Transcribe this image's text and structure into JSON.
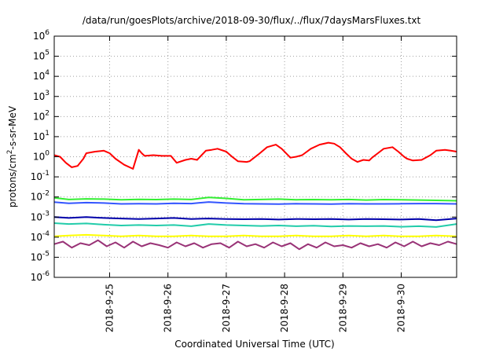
{
  "chart_data": {
    "type": "line",
    "title": "/data/run/goesPlots/archive/2018-09-30/flux/../flux/7daysMarsFluxes.txt",
    "xlabel": "Coordinated Universal Time (UTC)",
    "ylabel": {
      "base": "protons/cm",
      "sup": "2",
      "rest": "-s-sr-MeV"
    },
    "yscale": "log",
    "ylim": [
      1e-06,
      1000000.0
    ],
    "xlim": [
      24.05,
      30.95
    ],
    "grid": true,
    "y_ticks": [
      {
        "value": 1e-06,
        "base": "10",
        "exp": "-6"
      },
      {
        "value": 1e-05,
        "base": "10",
        "exp": "-5"
      },
      {
        "value": 0.0001,
        "base": "10",
        "exp": "-4"
      },
      {
        "value": 0.001,
        "base": "10",
        "exp": "-3"
      },
      {
        "value": 0.01,
        "base": "10",
        "exp": "-2"
      },
      {
        "value": 0.1,
        "base": "10",
        "exp": "-1"
      },
      {
        "value": 1.0,
        "base": "10",
        "exp": "0"
      },
      {
        "value": 10.0,
        "base": "10",
        "exp": "1"
      },
      {
        "value": 100.0,
        "base": "10",
        "exp": "2"
      },
      {
        "value": 1000.0,
        "base": "10",
        "exp": "3"
      },
      {
        "value": 10000.0,
        "base": "10",
        "exp": "4"
      },
      {
        "value": 100000.0,
        "base": "10",
        "exp": "5"
      },
      {
        "value": 1000000.0,
        "base": "10",
        "exp": "6"
      }
    ],
    "x_ticks": [
      {
        "value": 25,
        "label": "2018-9-25"
      },
      {
        "value": 26,
        "label": "2018-9-26"
      },
      {
        "value": 27,
        "label": "2018-9-27"
      },
      {
        "value": 28,
        "label": "2018-9-28"
      },
      {
        "value": 29,
        "label": "2018-9-29"
      },
      {
        "value": 30,
        "label": "2018-9-30"
      }
    ],
    "series": [
      {
        "color": "#ff0000",
        "x": [
          24.05,
          24.15,
          24.25,
          24.35,
          24.45,
          24.55,
          24.6,
          24.75,
          24.9,
          25.0,
          25.1,
          25.25,
          25.4,
          25.5,
          25.55,
          25.6,
          25.75,
          25.9,
          26.05,
          26.15,
          26.3,
          26.4,
          26.5,
          26.65,
          26.75,
          26.85,
          27.0,
          27.1,
          27.2,
          27.35,
          27.4,
          27.55,
          27.7,
          27.85,
          27.95,
          28.1,
          28.2,
          28.3,
          28.45,
          28.6,
          28.75,
          28.85,
          28.95,
          29.05,
          29.15,
          29.25,
          29.35,
          29.45,
          29.5,
          29.6,
          29.7,
          29.85,
          29.95,
          30.05,
          30.1,
          30.2,
          30.35,
          30.5,
          30.6,
          30.75,
          30.85,
          30.95
        ],
        "values": [
          1.2,
          1.0,
          0.5,
          0.3,
          0.35,
          0.8,
          1.5,
          1.8,
          2.0,
          1.5,
          0.8,
          0.4,
          0.25,
          2.2,
          1.5,
          1.1,
          1.2,
          1.1,
          1.1,
          0.5,
          0.7,
          0.8,
          0.7,
          2.0,
          2.2,
          2.5,
          1.8,
          1.0,
          0.6,
          0.55,
          0.6,
          1.3,
          3.0,
          4.0,
          2.5,
          0.9,
          1.0,
          1.2,
          2.5,
          4.0,
          5.0,
          4.5,
          3.0,
          1.5,
          0.8,
          0.55,
          0.7,
          0.65,
          0.9,
          1.5,
          2.5,
          3.0,
          1.8,
          1.0,
          0.8,
          0.65,
          0.7,
          1.2,
          2.0,
          2.2,
          2.0,
          1.8
        ]
      },
      {
        "color": "#33ee33",
        "x": [
          24.05,
          24.3,
          24.6,
          24.9,
          25.2,
          25.5,
          25.8,
          26.1,
          26.4,
          26.7,
          27.0,
          27.3,
          27.6,
          27.9,
          28.2,
          28.5,
          28.8,
          29.1,
          29.4,
          29.7,
          30.0,
          30.3,
          30.6,
          30.95
        ],
        "values": [
          0.009,
          0.0075,
          0.008,
          0.0078,
          0.0072,
          0.0076,
          0.0074,
          0.0078,
          0.0075,
          0.0095,
          0.0085,
          0.0072,
          0.0075,
          0.0078,
          0.0073,
          0.0074,
          0.0072,
          0.0075,
          0.007,
          0.0074,
          0.0072,
          0.007,
          0.0068,
          0.0065
        ]
      },
      {
        "color": "#3355ff",
        "x": [
          24.05,
          24.3,
          24.6,
          24.9,
          25.2,
          25.5,
          25.8,
          26.1,
          26.4,
          26.7,
          27.0,
          27.3,
          27.6,
          27.9,
          28.2,
          28.5,
          28.8,
          29.1,
          29.4,
          29.7,
          30.0,
          30.3,
          30.6,
          30.95
        ],
        "values": [
          0.0055,
          0.0048,
          0.0052,
          0.005,
          0.0045,
          0.0046,
          0.0045,
          0.0048,
          0.0047,
          0.0056,
          0.005,
          0.0046,
          0.0045,
          0.0044,
          0.0046,
          0.0045,
          0.0044,
          0.0046,
          0.0045,
          0.0045,
          0.0046,
          0.0047,
          0.0047,
          0.0045
        ]
      },
      {
        "color": "#0000aa",
        "x": [
          24.05,
          24.3,
          24.6,
          24.9,
          25.2,
          25.5,
          25.8,
          26.1,
          26.4,
          26.7,
          27.0,
          27.3,
          27.6,
          27.9,
          28.2,
          28.5,
          28.8,
          29.1,
          29.4,
          29.7,
          30.0,
          30.3,
          30.6,
          30.95
        ],
        "values": [
          0.001,
          0.0009,
          0.001,
          0.0009,
          0.00085,
          0.0008,
          0.00085,
          0.0009,
          0.0008,
          0.00085,
          0.0008,
          0.00078,
          0.0008,
          0.00075,
          0.0008,
          0.00078,
          0.0008,
          0.00075,
          0.0008,
          0.00078,
          0.00075,
          0.0008,
          0.0007,
          0.00085
        ]
      },
      {
        "color": "#22ccaa",
        "x": [
          24.05,
          24.3,
          24.6,
          24.9,
          25.2,
          25.5,
          25.8,
          26.1,
          26.4,
          26.7,
          27.0,
          27.3,
          27.6,
          27.9,
          28.2,
          28.5,
          28.8,
          29.1,
          29.4,
          29.7,
          30.0,
          30.3,
          30.6,
          30.95
        ],
        "values": [
          0.0005,
          0.00045,
          0.00048,
          0.00042,
          0.00038,
          0.0004,
          0.00038,
          0.0004,
          0.00035,
          0.00045,
          0.0004,
          0.00038,
          0.00036,
          0.00038,
          0.00035,
          0.00037,
          0.00034,
          0.00036,
          0.00035,
          0.00036,
          0.00033,
          0.00035,
          0.00032,
          0.00045
        ]
      },
      {
        "color": "#ffff00",
        "x": [
          24.05,
          24.3,
          24.6,
          24.9,
          25.2,
          25.5,
          25.8,
          26.1,
          26.4,
          26.7,
          27.0,
          27.3,
          27.6,
          27.9,
          28.2,
          28.5,
          28.8,
          29.1,
          29.4,
          29.7,
          30.0,
          30.3,
          30.6,
          30.95
        ],
        "values": [
          0.00011,
          0.00012,
          0.00013,
          0.00012,
          0.00011,
          0.00012,
          0.00011,
          0.00011,
          0.00012,
          0.00011,
          0.00011,
          0.00012,
          0.00011,
          0.00011,
          0.00012,
          0.00011,
          0.00011,
          0.00012,
          0.00011,
          0.00012,
          0.00011,
          0.00011,
          0.00012,
          0.00011
        ]
      },
      {
        "color": "#993377",
        "x": [
          24.05,
          24.2,
          24.35,
          24.5,
          24.65,
          24.8,
          24.95,
          25.1,
          25.25,
          25.4,
          25.55,
          25.7,
          25.85,
          26.0,
          26.15,
          26.3,
          26.45,
          26.6,
          26.75,
          26.9,
          27.05,
          27.2,
          27.35,
          27.5,
          27.65,
          27.8,
          27.95,
          28.1,
          28.25,
          28.4,
          28.55,
          28.7,
          28.85,
          29.0,
          29.15,
          29.3,
          29.45,
          29.6,
          29.75,
          29.9,
          30.05,
          30.2,
          30.35,
          30.5,
          30.65,
          30.8,
          30.95
        ],
        "values": [
          4.5e-05,
          6e-05,
          3e-05,
          5e-05,
          4e-05,
          7e-05,
          3.5e-05,
          5.5e-05,
          3e-05,
          6e-05,
          3.5e-05,
          5e-05,
          4e-05,
          3e-05,
          5.5e-05,
          3.5e-05,
          5e-05,
          3e-05,
          4.5e-05,
          5e-05,
          3e-05,
          6e-05,
          3.5e-05,
          4.5e-05,
          3e-05,
          5.5e-05,
          3.5e-05,
          5e-05,
          2.5e-05,
          4.5e-05,
          3e-05,
          5.5e-05,
          3.5e-05,
          4e-05,
          3e-05,
          5e-05,
          3.5e-05,
          4.5e-05,
          3e-05,
          5.5e-05,
          3.5e-05,
          6e-05,
          3.5e-05,
          5e-05,
          4e-05,
          6e-05,
          4.5e-05
        ]
      }
    ]
  }
}
